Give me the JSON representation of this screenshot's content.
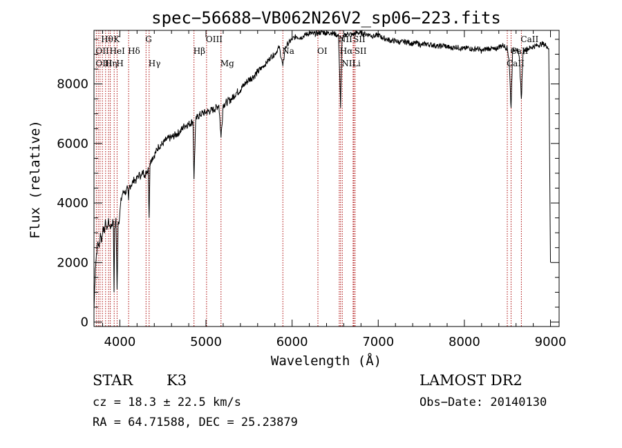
{
  "chart_data": {
    "type": "line",
    "title": "spec−56688−VB062N26V2_sp06−223.fits",
    "xlabel": "Wavelength (Å)",
    "ylabel": "Flux (relative)",
    "xlim": [
      3700,
      9100
    ],
    "ylim": [
      -150,
      9800
    ],
    "xticks": [
      4000,
      5000,
      6000,
      7000,
      8000,
      9000
    ],
    "xtick_labels": [
      "4000",
      "5000",
      "6000",
      "7000",
      "8000",
      "9000"
    ],
    "yticks": [
      0,
      2000,
      4000,
      6000,
      8000
    ],
    "ytick_labels": [
      "0",
      "2000",
      "4000",
      "6000",
      "8000"
    ],
    "grid": false,
    "series": [
      {
        "x": [
          3700,
          3715,
          3730,
          3745,
          3760,
          3775,
          3790,
          3805,
          3820,
          3835,
          3850,
          3865,
          3880,
          3895,
          3910,
          3925,
          3933,
          3940,
          3955,
          3968,
          3980,
          3995,
          4010,
          4030,
          4050,
          4070,
          4090,
          4101,
          4110,
          4130,
          4150,
          4170,
          4190,
          4210,
          4230,
          4250,
          4270,
          4290,
          4310,
          4330,
          4340,
          4350,
          4370,
          4400,
          4450,
          4500,
          4550,
          4600,
          4650,
          4700,
          4750,
          4800,
          4850,
          4861,
          4880,
          4900,
          4950,
          5000,
          5050,
          5100,
          5150,
          5175,
          5200,
          5250,
          5300,
          5350,
          5400,
          5450,
          5500,
          5550,
          5600,
          5650,
          5700,
          5750,
          5800,
          5850,
          5893,
          5920,
          5950,
          6000,
          6050,
          6100,
          6150,
          6200,
          6250,
          6300,
          6350,
          6400,
          6450,
          6500,
          6540,
          6563,
          6580,
          6600,
          6650,
          6700,
          6750,
          6800,
          6850,
          6900,
          6950,
          7000,
          7050,
          7100,
          7150,
          7200,
          7250,
          7300,
          7350,
          7400,
          7450,
          7500,
          7550,
          7600,
          7650,
          7700,
          7750,
          7800,
          7850,
          7900,
          7950,
          8000,
          8050,
          8100,
          8150,
          8200,
          8250,
          8300,
          8350,
          8400,
          8450,
          8498,
          8520,
          8542,
          8560,
          8580,
          8600,
          8620,
          8640,
          8662,
          8680,
          8700,
          8750,
          8800,
          8850,
          8900,
          8950,
          8980,
          9000
        ],
        "y": [
          400,
          1800,
          2300,
          2700,
          2500,
          3000,
          2700,
          3200,
          3000,
          3400,
          3100,
          3400,
          3250,
          3200,
          3300,
          3400,
          1000,
          3150,
          3500,
          1100,
          3350,
          3450,
          4000,
          4300,
          4400,
          4350,
          4500,
          4100,
          4550,
          4600,
          4700,
          4800,
          4750,
          4900,
          4950,
          4900,
          5050,
          4950,
          5000,
          5200,
          3500,
          5300,
          5500,
          5600,
          5900,
          6000,
          6150,
          6200,
          6300,
          6400,
          6600,
          6650,
          6750,
          4800,
          6750,
          6900,
          7000,
          7050,
          7100,
          7150,
          7300,
          6200,
          7300,
          7400,
          7500,
          7700,
          7800,
          8000,
          8150,
          8250,
          8400,
          8550,
          8700,
          8900,
          9000,
          9250,
          8600,
          9200,
          9350,
          9500,
          9600,
          9550,
          9650,
          9700,
          9680,
          9700,
          9750,
          9700,
          9720,
          9680,
          9600,
          7200,
          9500,
          9600,
          9700,
          9650,
          9720,
          9700,
          9680,
          9650,
          9600,
          9650,
          9550,
          9500,
          9450,
          9450,
          9400,
          9420,
          9400,
          9350,
          9380,
          9300,
          9350,
          9320,
          9300,
          9250,
          9300,
          9250,
          9200,
          9250,
          9200,
          9180,
          9220,
          9150,
          9200,
          9100,
          9180,
          9200,
          9150,
          9250,
          9300,
          9200,
          8800,
          7200,
          9100,
          9150,
          9200,
          9100,
          8800,
          7500,
          9000,
          9150,
          9200,
          9250,
          9300,
          9350,
          9300,
          9200,
          2000
        ]
      }
    ],
    "line_labels": [
      {
        "label": "Hθ",
        "wave": 3798,
        "row": 1,
        "dx": -2
      },
      {
        "label": "K",
        "wave": 3934,
        "row": 1,
        "dx": -1
      },
      {
        "label": "G",
        "wave": 4304,
        "row": 1,
        "dx": -1
      },
      {
        "label": "OIII",
        "wave": 5007,
        "row": 1,
        "dx": -1
      },
      {
        "label": "CaII",
        "wave": 8662,
        "row": 1,
        "dx": -1
      },
      {
        "label": "OII",
        "wave": 3727,
        "row": 2,
        "dx": -1
      },
      {
        "label": "HeI",
        "wave": 3889,
        "row": 2,
        "dx": -1
      },
      {
        "label": "Hδ",
        "wave": 4102,
        "row": 2,
        "dx": -1
      },
      {
        "label": "Hβ",
        "wave": 4861,
        "row": 2,
        "dx": -1
      },
      {
        "label": "Na",
        "wave": 5893,
        "row": 2,
        "dx": -1
      },
      {
        "label": "OI",
        "wave": 6300,
        "row": 2,
        "dx": -1
      },
      {
        "label": "NII",
        "wave": 6548,
        "row": 1,
        "dx": -1
      },
      {
        "label": "SII",
        "wave": 6717,
        "row": 1,
        "dx": -1
      },
      {
        "label": "Hα",
        "wave": 6563,
        "row": 2,
        "dx": -1
      },
      {
        "label": "SII",
        "wave": 6731,
        "row": 2,
        "dx": -1
      },
      {
        "label": "CaII",
        "wave": 8542,
        "row": 2,
        "dx": -1
      },
      {
        "label": "OIII",
        "wave": 3727,
        "row": 3,
        "dx": -1
      },
      {
        "label": "Hη",
        "wave": 3835,
        "row": 3,
        "dx": -1
      },
      {
        "label": "H",
        "wave": 3968,
        "row": 3,
        "dx": -1
      },
      {
        "label": "Hγ",
        "wave": 4340,
        "row": 3,
        "dx": -1
      },
      {
        "label": "Mg",
        "wave": 5175,
        "row": 3,
        "dx": -1
      },
      {
        "label": "NII",
        "wave": 6583,
        "row": 3,
        "dx": -1
      },
      {
        "label": "Li",
        "wave": 6708,
        "row": 3,
        "dx": -1
      },
      {
        "label": "CaII",
        "wave": 8498,
        "row": 3,
        "dx": -1
      }
    ],
    "marker_lines": [
      3727,
      3750,
      3771,
      3798,
      3835,
      3869,
      3889,
      3934,
      3968,
      4102,
      4304,
      4340,
      4861,
      5007,
      5175,
      5893,
      6300,
      6548,
      6563,
      6583,
      6708,
      6717,
      6731,
      8498,
      8542,
      8662
    ],
    "colors": {
      "spectrum": "#000000",
      "marker": "#aa0000",
      "axis": "#000000"
    }
  },
  "info": {
    "class_label": "STAR",
    "subclass": "K3",
    "survey": "LAMOST DR2",
    "cz_line": "cz = 18.3 ± 22.5 km/s",
    "obs_date": "Obs−Date: 20140130",
    "radec": "RA =  64.71588, DEC =  25.23879"
  }
}
